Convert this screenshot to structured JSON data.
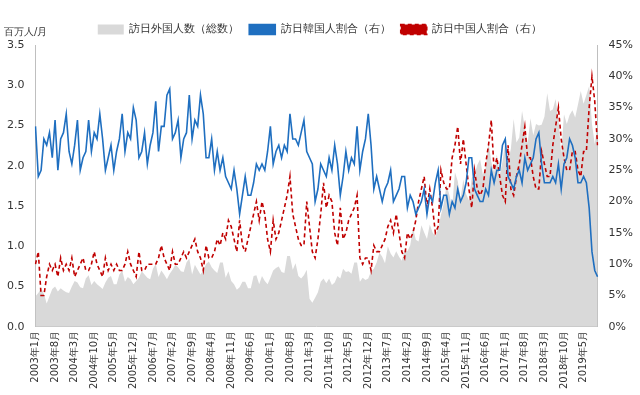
{
  "chart_data": {
    "type": "line",
    "ylabel": "百万人/月",
    "categories": [
      "2003年1月",
      null,
      null,
      null,
      null,
      null,
      null,
      "2003年8月",
      null,
      null,
      null,
      null,
      null,
      null,
      "2004年3月",
      null,
      null,
      null,
      null,
      null,
      null,
      "2004年10月",
      null,
      null,
      null,
      null,
      null,
      null,
      "2005年5月",
      null,
      null,
      null,
      null,
      null,
      null,
      "2005年12月",
      null,
      null,
      null,
      null,
      null,
      null,
      "2006年7月",
      null,
      null,
      null,
      null,
      null,
      null,
      "2007年2月",
      null,
      null,
      null,
      null,
      null,
      null,
      "2007年9月",
      null,
      null,
      null,
      null,
      null,
      null,
      "2008年4月",
      null,
      null,
      null,
      null,
      null,
      null,
      "2008年11月",
      null,
      null,
      null,
      null,
      null,
      null,
      "2009年6月",
      null,
      null,
      null,
      null,
      null,
      null,
      "2010年1月",
      null,
      null,
      null,
      null,
      null,
      null,
      "2010年8月",
      null,
      null,
      null,
      null,
      null,
      null,
      "2011年3月",
      null,
      null,
      null,
      null,
      null,
      null,
      "2011年10月",
      null,
      null,
      null,
      null,
      null,
      null,
      "2012年5月",
      null,
      null,
      null,
      null,
      null,
      null,
      "2012年12月",
      null,
      null,
      null,
      null,
      null,
      null,
      "2013年7月",
      null,
      null,
      null,
      null,
      null,
      null,
      "2014年2月",
      null,
      null,
      null,
      null,
      null,
      null,
      "2014年9月",
      null,
      null,
      null,
      null,
      null,
      null,
      "2015年4月",
      null,
      null,
      null,
      null,
      null,
      null,
      "2015年11月",
      null,
      null,
      null,
      null,
      null,
      null,
      "2016年6月",
      null,
      null,
      null,
      null,
      null,
      null,
      "2017年1月",
      null,
      null,
      null,
      null,
      null,
      null,
      "2017年8月",
      null,
      null,
      null,
      null,
      null,
      null,
      "2018年3月",
      null,
      null,
      null,
      null,
      null,
      null,
      "2018年10月",
      null,
      null,
      null,
      null,
      null,
      null,
      "2019年5月",
      null,
      null,
      null,
      null,
      null
    ],
    "series": [
      {
        "name": "訪日外国人数（総数）",
        "type": "area",
        "color": "#d9d9d9",
        "values": [
          0.38,
          0.42,
          0.48,
          0.41,
          0.29,
          0.38,
          0.47,
          0.5,
          0.44,
          0.48,
          0.45,
          0.43,
          0.42,
          0.5,
          0.57,
          0.55,
          0.49,
          0.48,
          0.6,
          0.64,
          0.52,
          0.57,
          0.53,
          0.5,
          0.47,
          0.55,
          0.61,
          0.63,
          0.53,
          0.53,
          0.65,
          0.7,
          0.56,
          0.62,
          0.59,
          0.53,
          0.57,
          0.61,
          0.69,
          0.65,
          0.61,
          0.59,
          0.72,
          0.78,
          0.62,
          0.7,
          0.65,
          0.59,
          0.66,
          0.71,
          0.77,
          0.74,
          0.69,
          0.68,
          0.8,
          0.85,
          0.65,
          0.77,
          0.71,
          0.65,
          0.7,
          0.78,
          0.81,
          0.74,
          0.7,
          0.67,
          0.8,
          0.8,
          0.61,
          0.69,
          0.57,
          0.53,
          0.46,
          0.49,
          0.56,
          0.56,
          0.48,
          0.48,
          0.63,
          0.64,
          0.53,
          0.63,
          0.57,
          0.53,
          0.61,
          0.7,
          0.73,
          0.75,
          0.68,
          0.67,
          0.88,
          0.88,
          0.71,
          0.79,
          0.63,
          0.6,
          0.64,
          0.71,
          0.35,
          0.3,
          0.36,
          0.43,
          0.56,
          0.6,
          0.54,
          0.6,
          0.52,
          0.55,
          0.63,
          0.6,
          0.72,
          0.68,
          0.69,
          0.66,
          0.8,
          0.8,
          0.56,
          0.61,
          0.58,
          0.6,
          0.69,
          0.72,
          0.8,
          0.92,
          0.87,
          0.79,
          1.0,
          0.91,
          0.86,
          0.94,
          0.87,
          0.82,
          0.95,
          0.94,
          1.01,
          1.23,
          1.08,
          1.06,
          1.26,
          1.17,
          1.09,
          1.27,
          1.17,
          1.12,
          1.22,
          1.39,
          1.53,
          1.76,
          1.64,
          1.48,
          1.92,
          1.81,
          1.59,
          1.83,
          1.65,
          1.57,
          1.85,
          1.89,
          2.01,
          2.08,
          1.89,
          1.98,
          2.3,
          2.05,
          1.92,
          2.14,
          1.88,
          2.05,
          2.29,
          2.04,
          2.21,
          2.58,
          2.29,
          2.35,
          2.68,
          2.48,
          2.28,
          2.59,
          2.38,
          2.52,
          2.5,
          2.51,
          2.61,
          2.9,
          2.68,
          2.7,
          2.83,
          2.58,
          2.16,
          2.64,
          2.52,
          2.63,
          2.69,
          2.6,
          2.76,
          2.93,
          2.77,
          2.88,
          2.99,
          2.52,
          2.27,
          2.5
        ]
      },
      {
        "name": "訪日韓国人割合（右）",
        "type": "line",
        "axis": "y2",
        "color": "#1f6fc0",
        "line_style": "solid",
        "values": [
          32,
          24,
          25,
          30,
          29,
          31,
          27,
          33,
          25,
          30,
          31,
          34,
          28,
          26,
          29,
          33,
          25,
          27,
          28,
          33,
          28,
          31,
          30,
          34,
          30,
          25,
          27,
          29,
          25,
          28,
          30,
          34,
          28,
          31,
          30,
          35,
          33,
          27,
          28,
          31,
          26,
          29,
          31,
          36,
          28,
          32,
          32,
          37,
          38,
          30,
          31,
          33,
          27,
          30,
          31,
          37,
          30,
          33,
          32,
          37,
          34,
          27,
          27,
          30,
          25,
          28,
          25,
          27,
          24,
          23,
          22,
          25,
          22,
          18,
          21,
          24,
          21,
          21,
          23,
          26,
          25,
          26,
          25,
          28,
          32,
          26,
          28,
          29,
          27,
          29,
          28,
          34,
          30,
          30,
          29,
          31,
          33,
          28,
          27,
          26,
          20,
          22,
          26,
          25,
          24,
          27,
          25,
          29,
          26,
          21,
          24,
          28,
          25,
          27,
          26,
          32,
          25,
          28,
          30,
          34,
          29,
          22,
          24,
          22,
          20,
          22,
          23,
          25,
          20,
          21,
          22,
          24,
          24,
          19,
          21,
          20,
          18,
          19,
          20,
          22,
          18,
          21,
          20,
          23,
          25,
          19,
          21,
          21,
          18,
          20,
          19,
          22,
          20,
          21,
          23,
          27,
          27,
          22,
          21,
          20,
          20,
          22,
          21,
          25,
          23,
          25,
          25,
          29,
          30,
          24,
          23,
          22,
          24,
          25,
          23,
          27,
          25,
          26,
          27,
          30,
          31,
          26,
          23,
          23,
          23,
          24,
          23,
          26,
          22,
          26,
          27,
          30,
          29,
          27,
          23,
          23,
          24,
          23,
          19,
          12,
          9,
          8
        ]
      },
      {
        "name": "訪日中国人割合（右）",
        "type": "line",
        "axis": "y2",
        "color": "#c00000",
        "line_style": "dashed",
        "values": [
          10,
          12,
          5,
          5,
          8,
          10,
          9,
          10,
          8,
          11,
          9,
          10,
          9,
          11,
          8,
          9,
          10,
          11,
          9,
          9,
          10,
          12,
          10,
          9,
          8,
          11,
          9,
          10,
          9,
          10,
          9,
          9,
          10,
          12,
          10,
          9,
          8,
          12,
          9,
          9,
          10,
          10,
          10,
          10,
          11,
          13,
          11,
          10,
          9,
          12,
          10,
          10,
          11,
          12,
          11,
          12,
          13,
          14,
          12,
          11,
          9,
          13,
          11,
          11,
          12,
          14,
          13,
          15,
          14,
          17,
          16,
          14,
          12,
          17,
          13,
          12,
          14,
          16,
          18,
          20,
          17,
          20,
          18,
          14,
          12,
          17,
          14,
          15,
          17,
          19,
          21,
          24,
          18,
          16,
          14,
          13,
          13,
          20,
          16,
          12,
          11,
          14,
          18,
          23,
          19,
          21,
          20,
          15,
          13,
          19,
          14,
          15,
          17,
          18,
          19,
          21,
          11,
          10,
          11,
          11,
          9,
          13,
          12,
          12,
          13,
          14,
          16,
          17,
          15,
          18,
          15,
          12,
          11,
          15,
          14,
          15,
          17,
          20,
          22,
          24,
          19,
          22,
          19,
          15,
          16,
          25,
          23,
          22,
          22,
          27,
          29,
          32,
          26,
          30,
          26,
          22,
          19,
          25,
          22,
          21,
          22,
          26,
          29,
          33,
          25,
          27,
          24,
          21,
          20,
          29,
          22,
          21,
          24,
          26,
          29,
          32,
          27,
          27,
          24,
          22,
          22,
          28,
          26,
          24,
          24,
          29,
          32,
          35,
          30,
          27,
          25,
          25,
          28,
          28,
          25,
          24,
          28,
          28,
          35,
          40,
          36,
          29
        ]
      }
    ],
    "ylim": [
      0,
      3.5
    ],
    "yticks": [
      {
        "value": 0,
        "label": "0.0"
      },
      {
        "value": 0.5,
        "label": "0.5"
      },
      {
        "value": 1,
        "label": "1.0"
      },
      {
        "value": 1.5,
        "label": "1.5"
      },
      {
        "value": 2,
        "label": "2.0"
      },
      {
        "value": 2.5,
        "label": "2.5"
      },
      {
        "value": 3,
        "label": "3.0"
      },
      {
        "value": 3.5,
        "label": "3.5"
      }
    ],
    "y2lim": [
      0,
      45
    ],
    "y2ticks": [
      {
        "value": 0,
        "label": "0%"
      },
      {
        "value": 5,
        "label": "5%"
      },
      {
        "value": 10,
        "label": "10%"
      },
      {
        "value": 15,
        "label": "15%"
      },
      {
        "value": 20,
        "label": "20%"
      },
      {
        "value": 25,
        "label": "25%"
      },
      {
        "value": 30,
        "label": "30%"
      },
      {
        "value": 35,
        "label": "35%"
      },
      {
        "value": 40,
        "label": "40%"
      },
      {
        "value": 45,
        "label": "45%"
      }
    ],
    "legend": "top",
    "grid": false
  }
}
